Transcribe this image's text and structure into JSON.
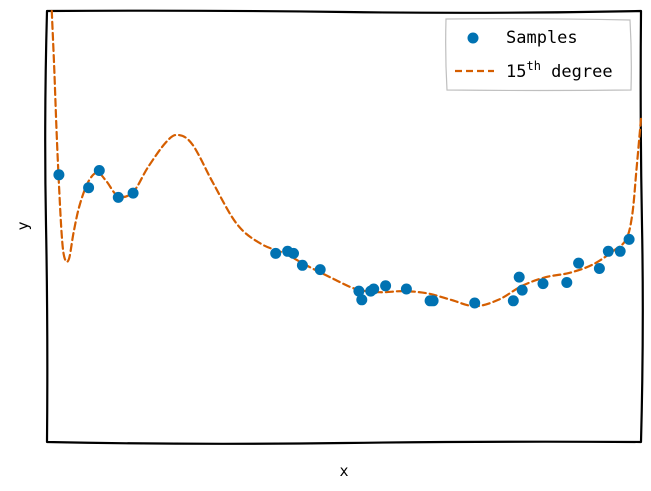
{
  "chart_data": {
    "type": "scatter",
    "title": "",
    "xlabel": "x",
    "ylabel": "y",
    "xlim": [
      0.0,
      1.0
    ],
    "ylim": [
      -1.9,
      2.1
    ],
    "grid": false,
    "ticks_visible": false,
    "legend": {
      "placement": "top-right",
      "entries": [
        {
          "label": "Samples",
          "marker": "circle",
          "color": "#0072B2"
        },
        {
          "label_base": "15",
          "label_sup": "th",
          "label_tail": " degree",
          "marker": "dashed-line",
          "color": "#D55E00"
        }
      ]
    },
    "series": [
      {
        "name": "Samples",
        "kind": "scatter",
        "color": "#0072B2",
        "points": [
          {
            "x": 0.02,
            "y": 0.58
          },
          {
            "x": 0.07,
            "y": 0.46
          },
          {
            "x": 0.088,
            "y": 0.62
          },
          {
            "x": 0.12,
            "y": 0.37
          },
          {
            "x": 0.145,
            "y": 0.41
          },
          {
            "x": 0.385,
            "y": -0.15
          },
          {
            "x": 0.405,
            "y": -0.13
          },
          {
            "x": 0.415,
            "y": -0.15
          },
          {
            "x": 0.43,
            "y": -0.26
          },
          {
            "x": 0.46,
            "y": -0.3
          },
          {
            "x": 0.525,
            "y": -0.5
          },
          {
            "x": 0.53,
            "y": -0.58
          },
          {
            "x": 0.545,
            "y": -0.5
          },
          {
            "x": 0.55,
            "y": -0.48
          },
          {
            "x": 0.57,
            "y": -0.45
          },
          {
            "x": 0.605,
            "y": -0.48
          },
          {
            "x": 0.645,
            "y": -0.59
          },
          {
            "x": 0.65,
            "y": -0.59
          },
          {
            "x": 0.72,
            "y": -0.61
          },
          {
            "x": 0.785,
            "y": -0.59
          },
          {
            "x": 0.795,
            "y": -0.37
          },
          {
            "x": 0.8,
            "y": -0.49
          },
          {
            "x": 0.835,
            "y": -0.43
          },
          {
            "x": 0.875,
            "y": -0.42
          },
          {
            "x": 0.895,
            "y": -0.24
          },
          {
            "x": 0.93,
            "y": -0.29
          },
          {
            "x": 0.945,
            "y": -0.13
          },
          {
            "x": 0.965,
            "y": -0.13
          },
          {
            "x": 0.98,
            "y": -0.02
          }
        ]
      },
      {
        "name": "15th degree",
        "kind": "line",
        "style": "dashed",
        "color": "#D55E00",
        "points": [
          {
            "x": 0.008,
            "y": 2.1
          },
          {
            "x": 0.012,
            "y": 1.6
          },
          {
            "x": 0.016,
            "y": 1.0
          },
          {
            "x": 0.02,
            "y": 0.5
          },
          {
            "x": 0.025,
            "y": 0.0
          },
          {
            "x": 0.03,
            "y": -0.2
          },
          {
            "x": 0.037,
            "y": -0.2
          },
          {
            "x": 0.045,
            "y": 0.05
          },
          {
            "x": 0.055,
            "y": 0.3
          },
          {
            "x": 0.07,
            "y": 0.52
          },
          {
            "x": 0.085,
            "y": 0.6
          },
          {
            "x": 0.1,
            "y": 0.52
          },
          {
            "x": 0.12,
            "y": 0.38
          },
          {
            "x": 0.145,
            "y": 0.42
          },
          {
            "x": 0.17,
            "y": 0.65
          },
          {
            "x": 0.2,
            "y": 0.88
          },
          {
            "x": 0.22,
            "y": 0.95
          },
          {
            "x": 0.245,
            "y": 0.86
          },
          {
            "x": 0.28,
            "y": 0.5
          },
          {
            "x": 0.32,
            "y": 0.12
          },
          {
            "x": 0.36,
            "y": -0.06
          },
          {
            "x": 0.4,
            "y": -0.15
          },
          {
            "x": 0.44,
            "y": -0.27
          },
          {
            "x": 0.48,
            "y": -0.38
          },
          {
            "x": 0.52,
            "y": -0.48
          },
          {
            "x": 0.56,
            "y": -0.51
          },
          {
            "x": 0.6,
            "y": -0.5
          },
          {
            "x": 0.64,
            "y": -0.52
          },
          {
            "x": 0.68,
            "y": -0.58
          },
          {
            "x": 0.72,
            "y": -0.64
          },
          {
            "x": 0.76,
            "y": -0.58
          },
          {
            "x": 0.8,
            "y": -0.45
          },
          {
            "x": 0.84,
            "y": -0.37
          },
          {
            "x": 0.88,
            "y": -0.33
          },
          {
            "x": 0.92,
            "y": -0.25
          },
          {
            "x": 0.955,
            "y": -0.12
          },
          {
            "x": 0.975,
            "y": -0.02
          },
          {
            "x": 0.985,
            "y": 0.2
          },
          {
            "x": 0.992,
            "y": 0.6
          },
          {
            "x": 1.0,
            "y": 1.1
          }
        ]
      }
    ]
  }
}
